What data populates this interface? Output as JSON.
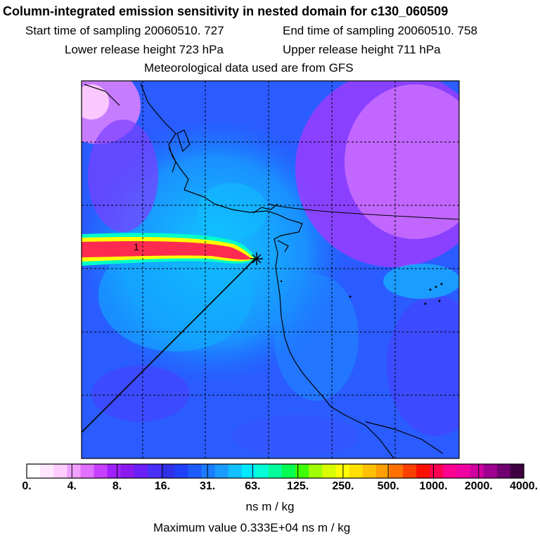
{
  "header": {
    "title": "Column-integrated emission sensitivity in nested domain for c130_060509",
    "start_label": "Start time of sampling 20060510.   727",
    "end_label": "End time of sampling 20060510.   758",
    "lower_label": "Lower release height  723 hPa",
    "upper_label": "Upper release height  711 hPa",
    "met_label": "Meteorological data used are from GFS"
  },
  "map": {
    "plume_label": "1",
    "release_marker": "star-icon",
    "colors": {
      "plume_core": "#ff1a60",
      "plume_mid": "#ffe600",
      "plume_outer": "#00ffd0",
      "background_low": "#1a6aff",
      "background_high": "#a040ff",
      "background_top": "#ff66ff"
    }
  },
  "colorbar": {
    "tick_labels": [
      "0.",
      "4.",
      "8.",
      "16.",
      "31.",
      "63.",
      "125.",
      "250.",
      "500.",
      "1000.",
      "2000.",
      "4000."
    ],
    "colors": [
      "#ffffff",
      "#ffe6ff",
      "#ffccff",
      "#f0a0ff",
      "#e070ff",
      "#c840ff",
      "#a020ff",
      "#8a1af0",
      "#6a20ff",
      "#4a30ff",
      "#3030e8",
      "#2040ff",
      "#1a5cff",
      "#1a7cff",
      "#1a9cff",
      "#10c0ff",
      "#00e8ff",
      "#00ffd8",
      "#00ff9a",
      "#00ff50",
      "#40ff00",
      "#a0ff00",
      "#d8ff00",
      "#ffff00",
      "#ffe000",
      "#ffc000",
      "#ffa000",
      "#ff7000",
      "#ff4000",
      "#ff1000",
      "#ff0050",
      "#ff0090",
      "#f000a0",
      "#d000a0",
      "#a00090",
      "#700070",
      "#400040"
    ],
    "unit": "ns m / kg"
  },
  "footer": {
    "max_value": "Maximum value  0.333E+04 ns m / kg"
  }
}
